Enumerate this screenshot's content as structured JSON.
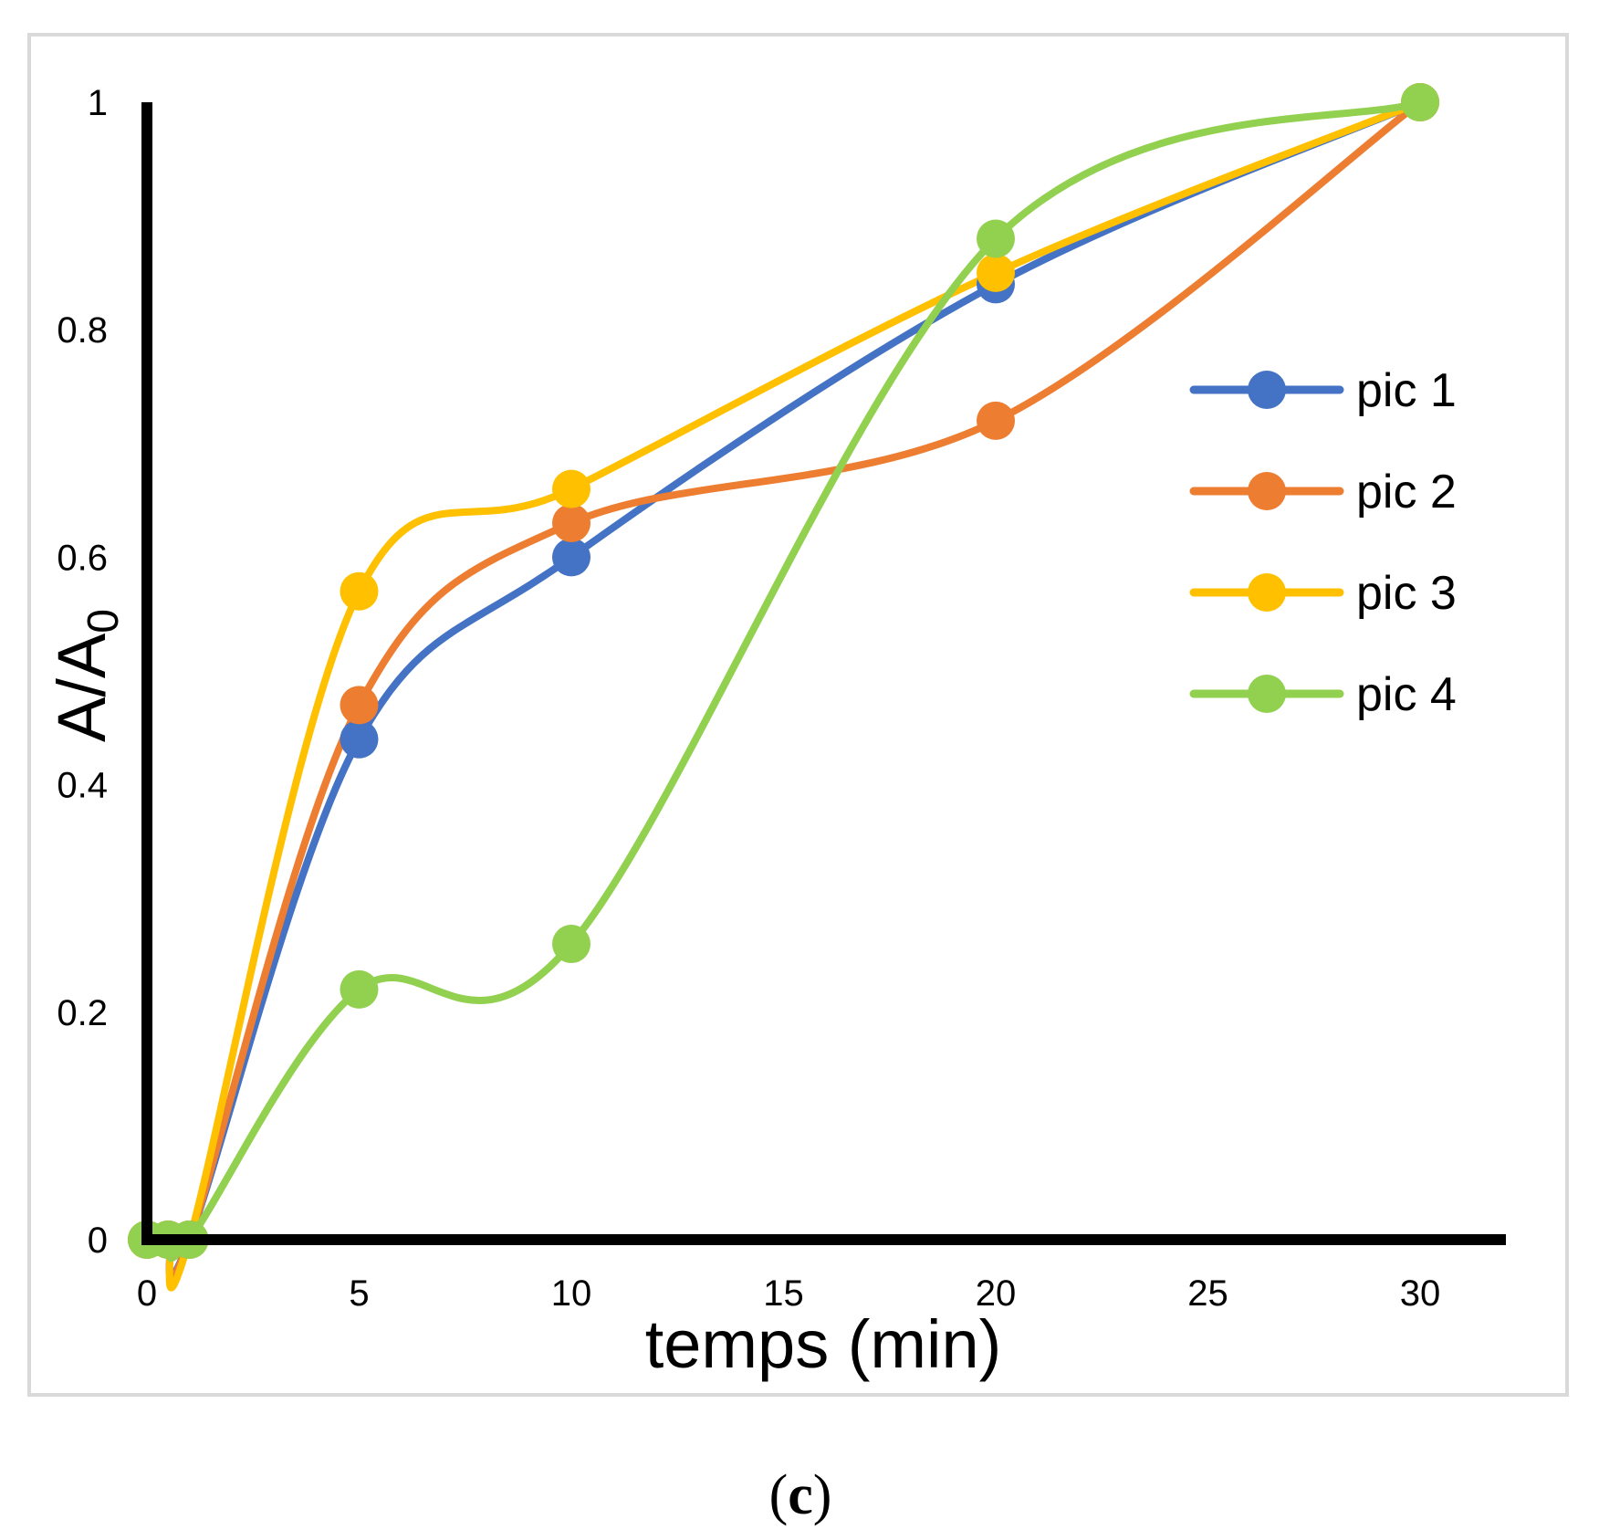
{
  "chart_data": {
    "type": "line",
    "smooth": true,
    "markers": "circle",
    "xlabel": "temps (min)",
    "ylabel_main": "A/A",
    "ylabel_subscript": "0",
    "xlim": [
      0,
      32
    ],
    "ylim": [
      0,
      1
    ],
    "x_ticks": [
      0,
      5,
      10,
      15,
      20,
      25,
      30
    ],
    "y_ticks": [
      0,
      0.2,
      0.4,
      0.6,
      0.8,
      1
    ],
    "x_tick_labels": [
      "0",
      "5",
      "10",
      "15",
      "20",
      "25",
      "30"
    ],
    "y_tick_labels": [
      "0",
      "0.2",
      "0.4",
      "0.6",
      "0.8",
      "1"
    ],
    "legend_position": "right",
    "x": [
      0,
      0.5,
      1,
      5,
      10,
      20,
      30
    ],
    "series": [
      {
        "name": "pic 1",
        "color": "#4472C4",
        "values": [
          0,
          0,
          0,
          0.44,
          0.6,
          0.84,
          1
        ]
      },
      {
        "name": "pic 2",
        "color": "#ED7D31",
        "values": [
          0,
          0,
          0,
          0.47,
          0.63,
          0.72,
          1
        ]
      },
      {
        "name": "pic 3",
        "color": "#FFC000",
        "values": [
          0,
          0,
          0,
          0.57,
          0.66,
          0.85,
          1
        ]
      },
      {
        "name": "pic 4",
        "color": "#92D050",
        "values": [
          0,
          0,
          0,
          0.22,
          0.26,
          0.88,
          1
        ]
      }
    ]
  },
  "caption": {
    "open": "(",
    "letter": "c",
    "close": ")"
  }
}
